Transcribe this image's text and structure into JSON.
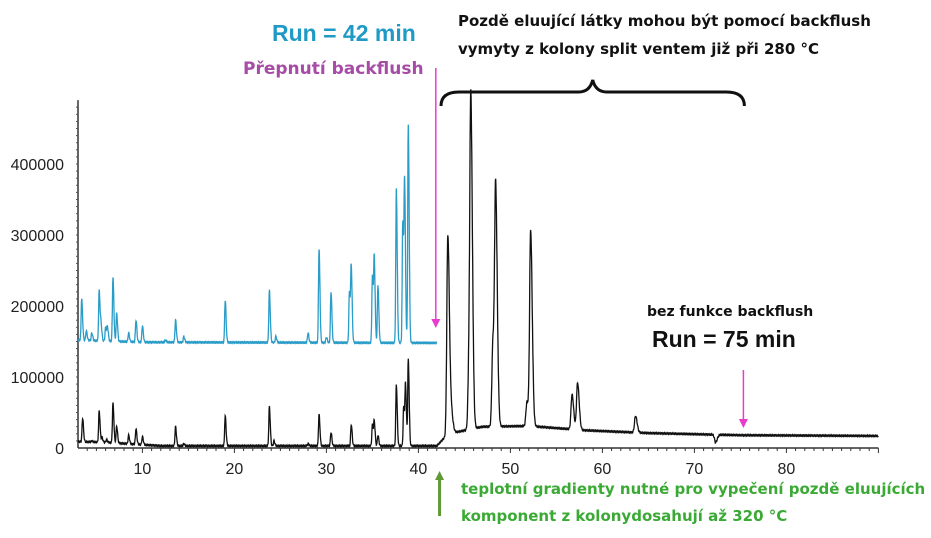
{
  "chart_data": {
    "type": "line",
    "title": "",
    "xlabel": "",
    "ylabel": "",
    "xlim": [
      3,
      90
    ],
    "ylim": [
      0,
      490000
    ],
    "grid": false,
    "legend": "none",
    "x_ticks": [
      10,
      20,
      30,
      40,
      50,
      60,
      70,
      80
    ],
    "y_ticks": [
      0,
      100000,
      200000,
      300000,
      400000
    ],
    "series": [
      {
        "color": "#2a9cc8",
        "x_end": 42,
        "baseline": [
          [
            3,
            152000
          ],
          [
            10,
            149000
          ],
          [
            42,
            148000
          ]
        ],
        "peaks": [
          [
            3.4,
            210000
          ],
          [
            3.9,
            165000
          ],
          [
            4.5,
            162000
          ],
          [
            5.3,
            222000
          ],
          [
            5.5,
            172000
          ],
          [
            6.0,
            170000
          ],
          [
            6.2,
            170000
          ],
          [
            6.8,
            240000
          ],
          [
            7.2,
            190000
          ],
          [
            8.5,
            162000
          ],
          [
            9.3,
            180000
          ],
          [
            10.0,
            172000
          ],
          [
            12.5,
            152000
          ],
          [
            13.6,
            180000
          ],
          [
            14.5,
            157000
          ],
          [
            19.0,
            208000
          ],
          [
            23.8,
            222000
          ],
          [
            24.5,
            157000
          ],
          [
            28.0,
            162000
          ],
          [
            29.2,
            280000
          ],
          [
            30.0,
            156000
          ],
          [
            30.5,
            220000
          ],
          [
            32.5,
            220000
          ],
          [
            32.7,
            252000
          ],
          [
            35.0,
            243000
          ],
          [
            35.2,
            262000
          ],
          [
            35.6,
            230000
          ],
          [
            37.6,
            365000
          ],
          [
            38.3,
            320000
          ],
          [
            38.5,
            365000
          ],
          [
            38.9,
            455000
          ]
        ]
      },
      {
        "color": "#111111",
        "x_end": 90,
        "baseline": [
          [
            3,
            9000
          ],
          [
            6,
            8000
          ],
          [
            12,
            3000
          ],
          [
            42,
            3000
          ],
          [
            42.8,
            14000
          ],
          [
            44,
            22000
          ],
          [
            47,
            30000
          ],
          [
            52,
            31000
          ],
          [
            58,
            25000
          ],
          [
            65,
            21000
          ],
          [
            75,
            18000
          ],
          [
            90,
            17000
          ]
        ],
        "peaks": [
          [
            3.5,
            42000
          ],
          [
            4.5,
            10000
          ],
          [
            5.3,
            52000
          ],
          [
            5.6,
            15000
          ],
          [
            6.1,
            12000
          ],
          [
            6.8,
            63000
          ],
          [
            7.2,
            31000
          ],
          [
            8.5,
            18000
          ],
          [
            9.3,
            27000
          ],
          [
            10.0,
            16000
          ],
          [
            13.6,
            30000
          ],
          [
            14.5,
            6000
          ],
          [
            19.0,
            45000
          ],
          [
            23.8,
            58000
          ],
          [
            24.3,
            10000
          ],
          [
            28.0,
            6000
          ],
          [
            29.2,
            47000
          ],
          [
            30.5,
            22000
          ],
          [
            32.7,
            33000
          ],
          [
            35.0,
            33000
          ],
          [
            35.2,
            36000
          ],
          [
            35.6,
            18000
          ],
          [
            37.6,
            90000
          ],
          [
            38.4,
            58000
          ],
          [
            38.6,
            87000
          ],
          [
            38.9,
            124000
          ],
          [
            43.2,
            300000
          ],
          [
            43.6,
            45000
          ],
          [
            45.5,
            110000
          ],
          [
            45.7,
            460000
          ],
          [
            48.1,
            150000
          ],
          [
            48.4,
            350000
          ],
          [
            51.8,
            65000
          ],
          [
            52.2,
            305000
          ],
          [
            56.7,
            75000
          ],
          [
            57.3,
            92000
          ],
          [
            63.6,
            45000
          ],
          [
            72.3,
            8000
          ]
        ]
      }
    ],
    "annotations": {
      "run_42": "Run = 42 min",
      "backflush_switch": "Přepnutí backflush",
      "late_eluting_line1": "Pozdě eluující látky mohou být pomocí backflush",
      "late_eluting_line2": "vymyty z kolony split ventem již při 280 °C",
      "no_backflush": "bez funkce backflush",
      "run_75": "Run = 75 min",
      "gradient_line1": "teplotní gradienty nutné pro vypečení pozdě eluujících",
      "gradient_line2": "komponent z kolonydosahují až 320 °C",
      "backflush_arrow_x": 42,
      "run_end_arrow_x": 75,
      "gradient_arrow_x": 42.3,
      "brace_range": [
        43,
        75
      ]
    },
    "colors": {
      "blue_text": "#1f9ac6",
      "purple_text": "#a64ca6",
      "magenta_arrow": "#e83ccf",
      "green": "#3aaa35",
      "green_arrow": "#5f9a35"
    }
  }
}
